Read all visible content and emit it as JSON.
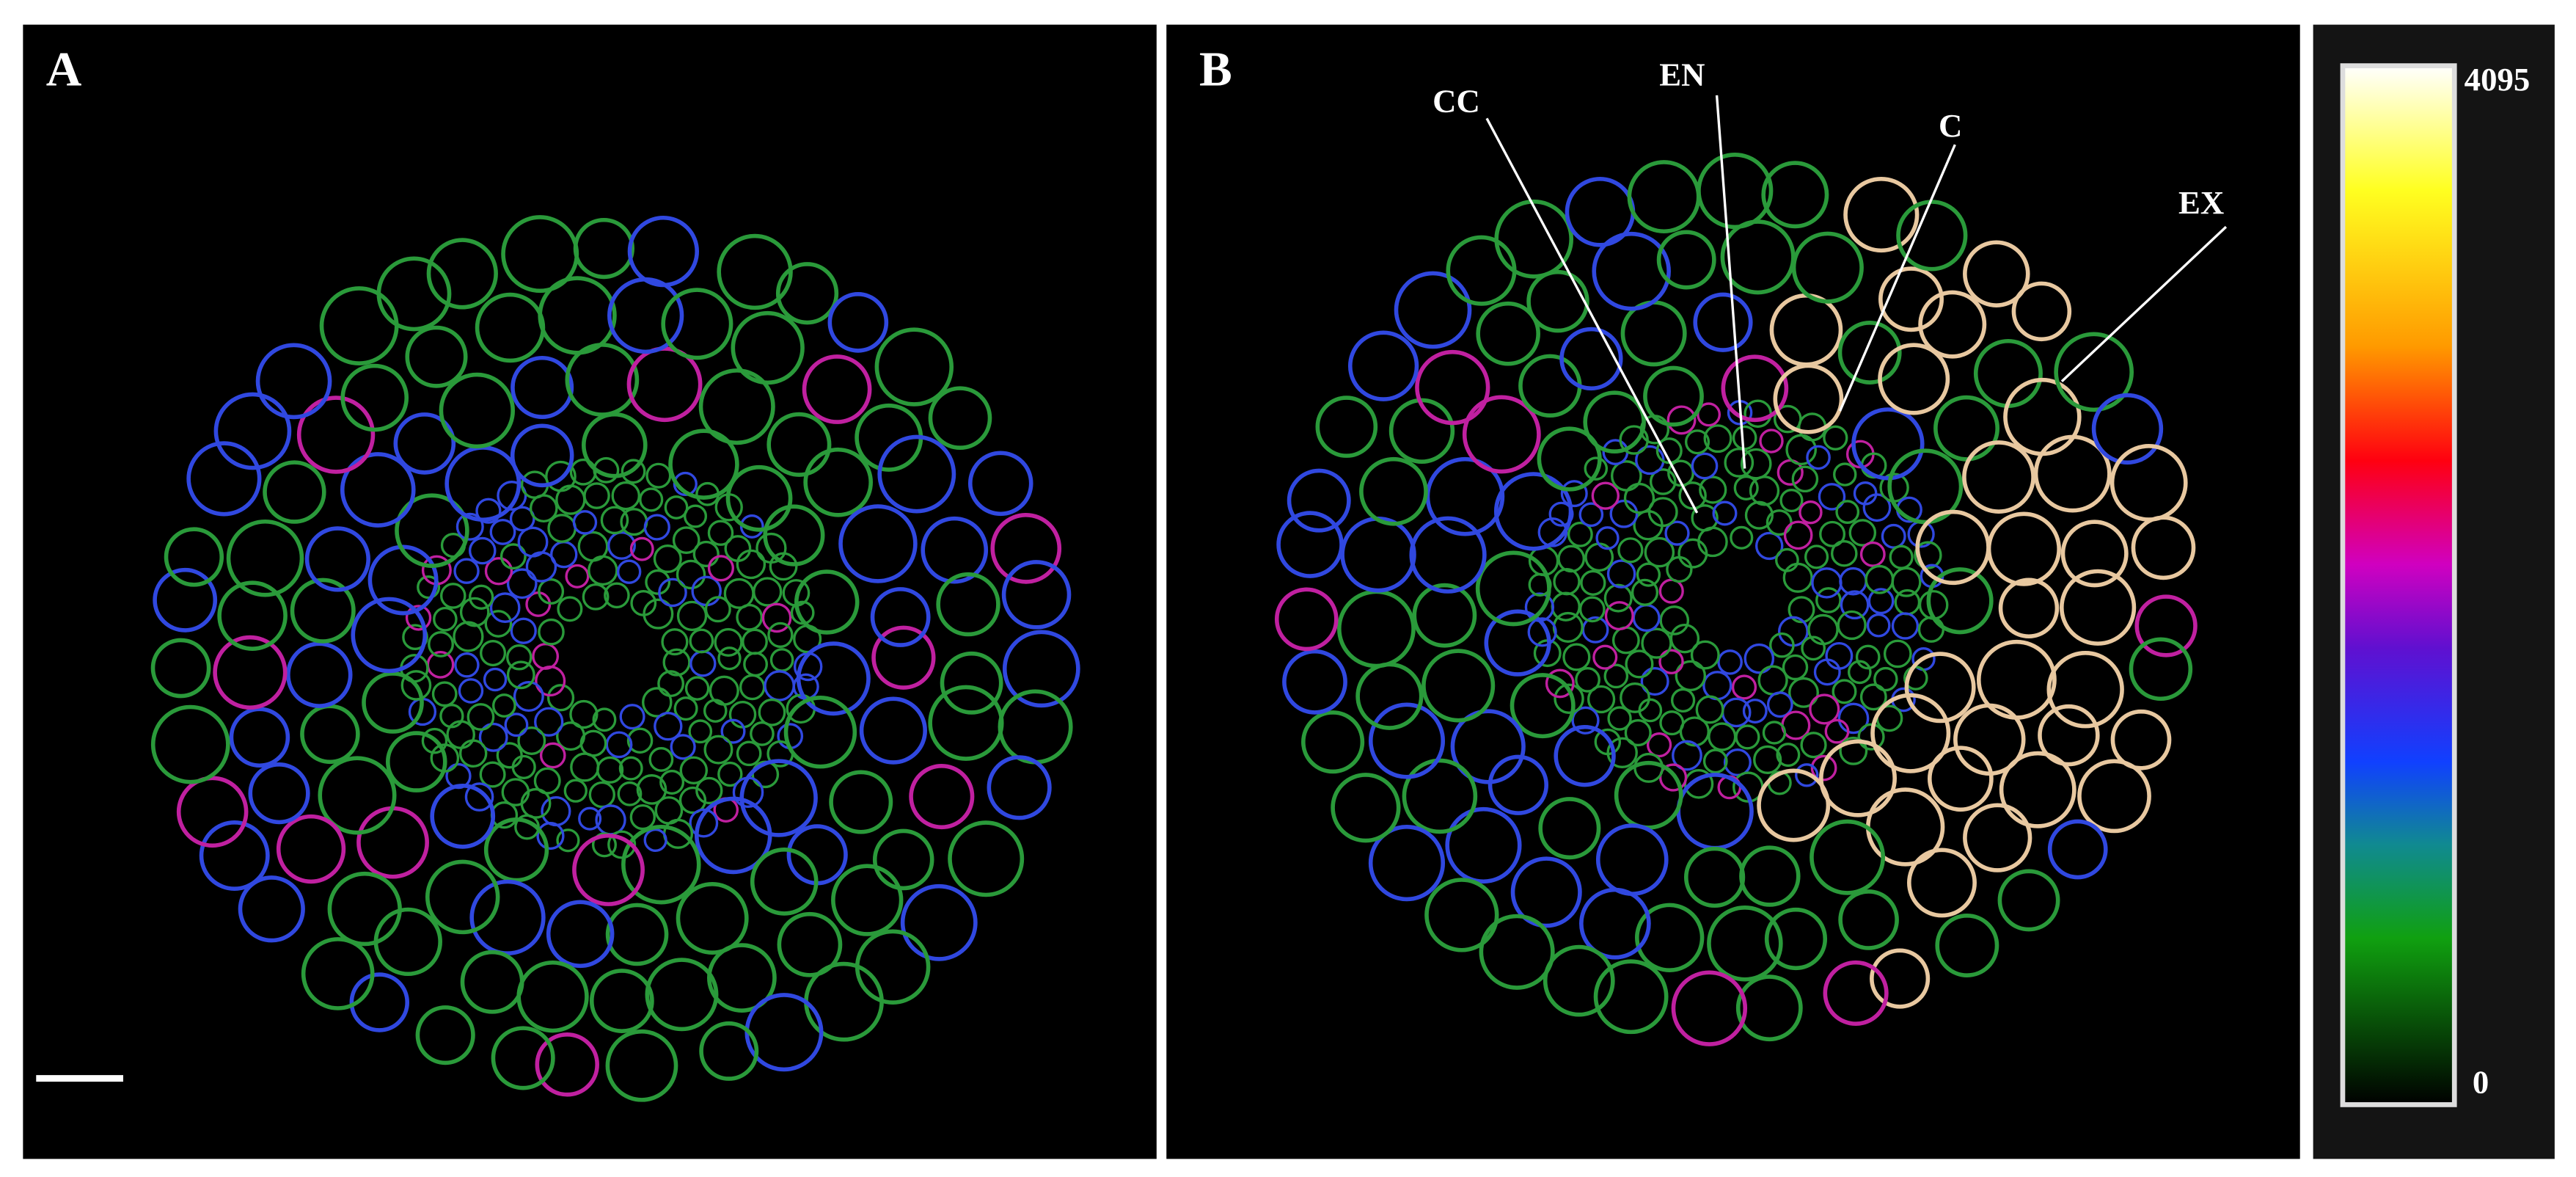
{
  "panels": [
    {
      "label": "A"
    },
    {
      "label": "B",
      "annotations": [
        "CC",
        "EN",
        "C",
        "EX"
      ]
    }
  ],
  "colorbar": {
    "max": 4095,
    "min": 0
  }
}
